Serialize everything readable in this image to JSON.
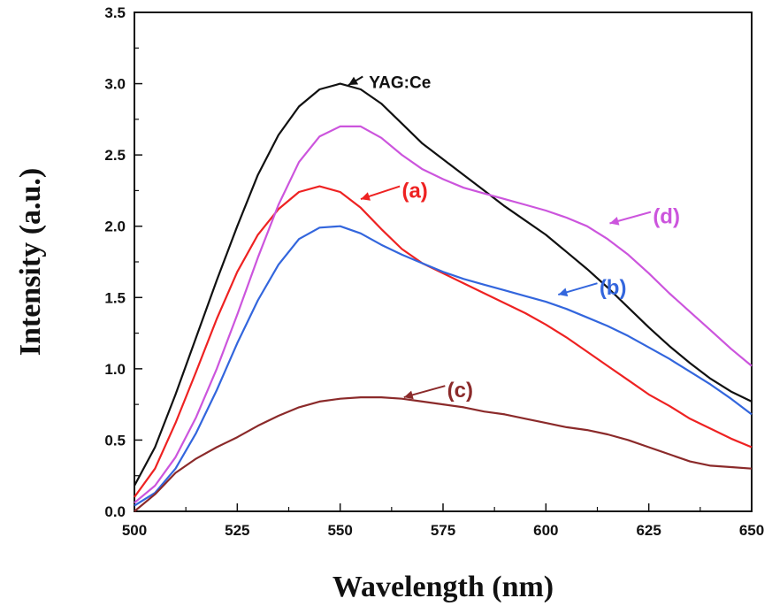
{
  "chart_data": {
    "type": "line",
    "xlabel": "Wavelength (nm)",
    "ylabel": "Intensity (a.u.)",
    "xlim": [
      500,
      650
    ],
    "ylim": [
      0,
      3.5
    ],
    "xticks": [
      "500",
      "525",
      "550",
      "575",
      "600",
      "625",
      "650"
    ],
    "yticks": [
      "0.0",
      "0.5",
      "1.0",
      "1.5",
      "2.0",
      "2.5",
      "3.0",
      "3.5"
    ],
    "grid": false,
    "series": [
      {
        "name": "YAG:Ce",
        "color": "#111111",
        "x": [
          500,
          505,
          510,
          515,
          520,
          525,
          530,
          535,
          540,
          545,
          550,
          555,
          560,
          565,
          570,
          575,
          580,
          585,
          590,
          595,
          600,
          605,
          610,
          615,
          620,
          625,
          630,
          635,
          640,
          645,
          650
        ],
        "y": [
          0.18,
          0.45,
          0.82,
          1.22,
          1.62,
          2.0,
          2.36,
          2.64,
          2.84,
          2.96,
          3.0,
          2.96,
          2.86,
          2.72,
          2.58,
          2.47,
          2.36,
          2.25,
          2.14,
          2.04,
          1.94,
          1.82,
          1.7,
          1.57,
          1.43,
          1.29,
          1.16,
          1.04,
          0.93,
          0.84,
          0.77
        ]
      },
      {
        "name": "(a)",
        "color": "#ee2222",
        "x": [
          500,
          505,
          510,
          515,
          520,
          525,
          530,
          535,
          540,
          545,
          550,
          555,
          560,
          565,
          570,
          575,
          580,
          585,
          590,
          595,
          600,
          605,
          610,
          615,
          620,
          625,
          630,
          635,
          640,
          645,
          650
        ],
        "y": [
          0.1,
          0.3,
          0.62,
          0.98,
          1.35,
          1.68,
          1.94,
          2.12,
          2.24,
          2.28,
          2.24,
          2.13,
          1.98,
          1.84,
          1.74,
          1.67,
          1.6,
          1.53,
          1.46,
          1.39,
          1.31,
          1.22,
          1.12,
          1.02,
          0.92,
          0.82,
          0.74,
          0.65,
          0.58,
          0.51,
          0.45
        ]
      },
      {
        "name": "(b)",
        "color": "#3366dd",
        "x": [
          500,
          505,
          510,
          515,
          520,
          525,
          530,
          535,
          540,
          545,
          550,
          555,
          560,
          565,
          570,
          575,
          580,
          585,
          590,
          595,
          600,
          605,
          610,
          615,
          620,
          625,
          630,
          635,
          640,
          645,
          650
        ],
        "y": [
          0.04,
          0.13,
          0.3,
          0.55,
          0.85,
          1.18,
          1.48,
          1.73,
          1.91,
          1.99,
          2.0,
          1.95,
          1.87,
          1.8,
          1.74,
          1.68,
          1.63,
          1.59,
          1.55,
          1.51,
          1.47,
          1.42,
          1.36,
          1.3,
          1.23,
          1.15,
          1.07,
          0.98,
          0.89,
          0.79,
          0.68
        ]
      },
      {
        "name": "(c)",
        "color": "#8b2a2a",
        "x": [
          500,
          505,
          510,
          515,
          520,
          525,
          530,
          535,
          540,
          545,
          550,
          555,
          560,
          565,
          570,
          575,
          580,
          585,
          590,
          595,
          600,
          605,
          610,
          615,
          620,
          625,
          630,
          635,
          640,
          645,
          650
        ],
        "y": [
          0.0,
          0.12,
          0.27,
          0.37,
          0.45,
          0.52,
          0.6,
          0.67,
          0.73,
          0.77,
          0.79,
          0.8,
          0.8,
          0.79,
          0.77,
          0.75,
          0.73,
          0.7,
          0.68,
          0.65,
          0.62,
          0.59,
          0.57,
          0.54,
          0.5,
          0.45,
          0.4,
          0.35,
          0.32,
          0.31,
          0.3
        ]
      },
      {
        "name": "(d)",
        "color": "#cc55dd",
        "x": [
          500,
          505,
          510,
          515,
          520,
          525,
          530,
          535,
          540,
          545,
          550,
          555,
          560,
          565,
          570,
          575,
          580,
          585,
          590,
          595,
          600,
          605,
          610,
          615,
          620,
          625,
          630,
          635,
          640,
          645,
          650
        ],
        "y": [
          0.06,
          0.18,
          0.38,
          0.66,
          1.0,
          1.38,
          1.78,
          2.15,
          2.45,
          2.63,
          2.7,
          2.7,
          2.62,
          2.5,
          2.4,
          2.33,
          2.27,
          2.23,
          2.19,
          2.15,
          2.11,
          2.06,
          2.0,
          1.91,
          1.8,
          1.67,
          1.53,
          1.4,
          1.27,
          1.14,
          1.02
        ]
      }
    ],
    "annotations": [
      {
        "text": "YAG:Ce",
        "color": "#111111",
        "size": "small",
        "from": [
          555.5,
          3.05
        ],
        "to": [
          552,
          2.99
        ],
        "label_at": [
          557,
          3.02
        ]
      },
      {
        "text": "(a)",
        "color": "#ee2222",
        "size": "large",
        "from": [
          564.5,
          2.28
        ],
        "to": [
          555,
          2.19
        ],
        "label_at": [
          565,
          2.25
        ]
      },
      {
        "text": "(b)",
        "color": "#3366dd",
        "size": "large",
        "from": [
          612.5,
          1.6
        ],
        "to": [
          603,
          1.52
        ],
        "label_at": [
          613,
          1.57
        ]
      },
      {
        "text": "(c)",
        "color": "#8b2a2a",
        "size": "large",
        "from": [
          575.5,
          0.88
        ],
        "to": [
          565.5,
          0.8
        ],
        "label_at": [
          576,
          0.85
        ]
      },
      {
        "text": "(d)",
        "color": "#cc55dd",
        "size": "large",
        "from": [
          625.5,
          2.1
        ],
        "to": [
          615.5,
          2.02
        ],
        "label_at": [
          626,
          2.07
        ]
      }
    ]
  }
}
